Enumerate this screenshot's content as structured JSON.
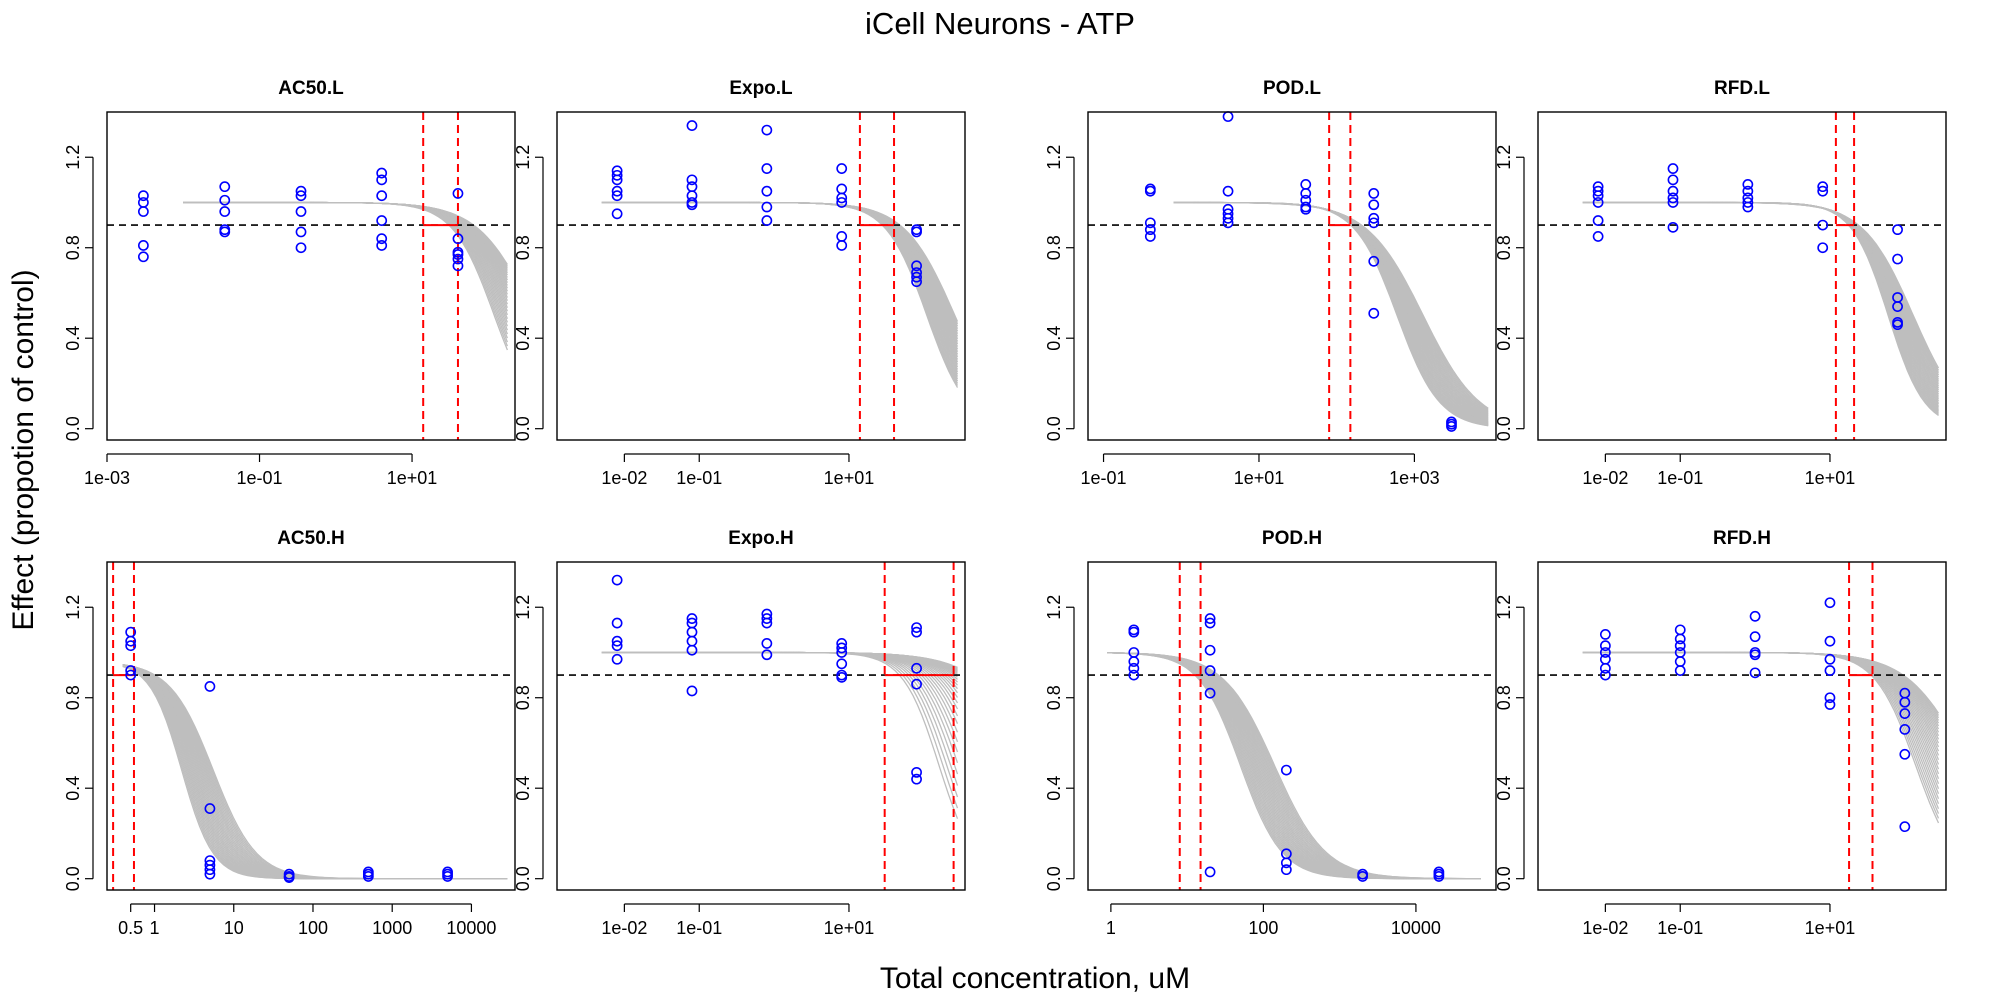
{
  "figure": {
    "title": "iCell Neurons -  ATP",
    "xlabel": "Total concentration, uM",
    "ylabel": "Effect (propotion of control)"
  },
  "colors": {
    "points": "#0000ff",
    "curves": "#bebebe",
    "interval": "#ff0000",
    "threshold": "#000000"
  },
  "chart_data": [
    {
      "type": "scatter",
      "title": "AC50.L",
      "x_scale": "log",
      "x_ticks": [
        0.001,
        0.1,
        10
      ],
      "x_tick_labels": [
        "1e-03",
        "1e-01",
        "1e+01"
      ],
      "xlim_log10": [
        -3,
        2.35
      ],
      "y_ticks": [
        0.0,
        0.4,
        0.8,
        1.2
      ],
      "y_tick_labels": [
        "0.0",
        "0.4",
        "0.8",
        "1.2"
      ],
      "ylim": [
        -0.05,
        1.4
      ],
      "threshold": 0.9,
      "interval": [
        14,
        40
      ],
      "curve_x_range_log10": [
        -2.0,
        2.25
      ],
      "curves": [
        {
          "top": 1.0,
          "ec50": 120,
          "hill": 1.6
        },
        {
          "top": 1.0,
          "ec50": 400,
          "hill": 1.2
        }
      ],
      "points": [
        {
          "x": 0.003,
          "y": [
            0.76,
            0.81,
            0.96,
            1.0,
            1.03
          ]
        },
        {
          "x": 0.035,
          "y": [
            0.87,
            0.88,
            0.96,
            1.01,
            1.07
          ]
        },
        {
          "x": 0.35,
          "y": [
            0.8,
            0.87,
            0.96,
            1.03,
            1.05
          ]
        },
        {
          "x": 4.0,
          "y": [
            0.81,
            0.84,
            0.92,
            1.03,
            1.1,
            1.13
          ]
        },
        {
          "x": 40,
          "y": [
            0.72,
            0.75,
            0.77,
            0.78,
            0.84,
            1.04
          ]
        }
      ]
    },
    {
      "type": "scatter",
      "title": "Expo.L",
      "x_scale": "log",
      "x_ticks": [
        0.01,
        0.1,
        10
      ],
      "x_tick_labels": [
        "1e-02",
        "1e-01",
        "1e+01"
      ],
      "xlim_log10": [
        -2.9,
        2.55
      ],
      "y_ticks": [
        0.0,
        0.4,
        0.8,
        1.2
      ],
      "y_tick_labels": [
        "0.0",
        "0.4",
        "0.8",
        "1.2"
      ],
      "ylim": [
        -0.05,
        1.4
      ],
      "threshold": 0.9,
      "interval": [
        14,
        40
      ],
      "curve_x_range_log10": [
        -2.3,
        2.45
      ],
      "curves": [
        {
          "top": 1.0,
          "ec50": 110,
          "hill": 1.6
        },
        {
          "top": 1.0,
          "ec50": 260,
          "hill": 1.3
        }
      ],
      "points": [
        {
          "x": 0.008,
          "y": [
            0.95,
            1.03,
            1.05,
            1.1,
            1.12,
            1.14
          ]
        },
        {
          "x": 0.08,
          "y": [
            0.99,
            1.0,
            1.03,
            1.07,
            1.1,
            1.34
          ]
        },
        {
          "x": 0.8,
          "y": [
            0.92,
            0.98,
            1.05,
            1.15,
            1.32
          ]
        },
        {
          "x": 8,
          "y": [
            0.81,
            0.85,
            1.0,
            1.02,
            1.06,
            1.15
          ]
        },
        {
          "x": 80,
          "y": [
            0.65,
            0.67,
            0.69,
            0.72,
            0.87,
            0.88
          ]
        }
      ]
    },
    {
      "type": "scatter",
      "title": "POD.L",
      "x_scale": "log",
      "x_ticks": [
        0.1,
        10,
        1000
      ],
      "x_tick_labels": [
        "1e-01",
        "1e+01",
        "1e+03"
      ],
      "xlim_log10": [
        -1.2,
        4.05
      ],
      "y_ticks": [
        0.0,
        0.4,
        0.8,
        1.2
      ],
      "y_tick_labels": [
        "0.0",
        "0.4",
        "0.8",
        "1.2"
      ],
      "ylim": [
        -0.05,
        1.4
      ],
      "threshold": 0.9,
      "interval": [
        80,
        150
      ],
      "curve_x_range_log10": [
        -0.1,
        3.95
      ],
      "curves": [
        {
          "top": 1.0,
          "ec50": 600,
          "hill": 1.6
        },
        {
          "top": 1.0,
          "ec50": 1300,
          "hill": 1.2
        }
      ],
      "points": [
        {
          "x": 0.4,
          "y": [
            0.85,
            0.88,
            0.91,
            1.05,
            1.06
          ]
        },
        {
          "x": 4,
          "y": [
            0.91,
            0.93,
            0.95,
            0.97,
            1.05,
            1.38
          ]
        },
        {
          "x": 40,
          "y": [
            0.97,
            0.98,
            1.01,
            1.04,
            1.08
          ]
        },
        {
          "x": 300,
          "y": [
            0.51,
            0.74,
            0.91,
            0.93,
            0.99,
            1.04
          ]
        },
        {
          "x": 3000,
          "y": [
            0.01,
            0.02,
            0.03
          ]
        }
      ]
    },
    {
      "type": "scatter",
      "title": "RFD.L",
      "x_scale": "log",
      "x_ticks": [
        0.01,
        0.1,
        10
      ],
      "x_tick_labels": [
        "1e-02",
        "1e-01",
        "1e+01"
      ],
      "xlim_log10": [
        -2.9,
        2.55
      ],
      "y_ticks": [
        0.0,
        0.4,
        0.8,
        1.2
      ],
      "y_tick_labels": [
        "0.0",
        "0.4",
        "0.8",
        "1.2"
      ],
      "ylim": [
        -0.05,
        1.4
      ],
      "threshold": 0.9,
      "interval": [
        12,
        21
      ],
      "curve_x_range_log10": [
        -2.3,
        2.45
      ],
      "curves": [
        {
          "top": 1.0,
          "ec50": 60,
          "hill": 1.8
        },
        {
          "top": 1.0,
          "ec50": 130,
          "hill": 1.3
        }
      ],
      "points": [
        {
          "x": 0.008,
          "y": [
            0.85,
            0.92,
            1.0,
            1.03,
            1.05,
            1.07
          ]
        },
        {
          "x": 0.08,
          "y": [
            0.89,
            1.0,
            1.02,
            1.05,
            1.1,
            1.15
          ]
        },
        {
          "x": 0.8,
          "y": [
            0.98,
            1.0,
            1.02,
            1.05,
            1.08
          ]
        },
        {
          "x": 8,
          "y": [
            0.8,
            0.9,
            1.05,
            1.07
          ]
        },
        {
          "x": 80,
          "y": [
            0.46,
            0.47,
            0.54,
            0.58,
            0.75,
            0.88
          ]
        }
      ]
    },
    {
      "type": "scatter",
      "title": "AC50.H",
      "x_scale": "log",
      "x_ticks": [
        0.5,
        1,
        10,
        100,
        1000,
        10000
      ],
      "x_tick_labels": [
        "0.5",
        "1",
        "10",
        "100",
        "1000",
        "10000"
      ],
      "xlim_log10": [
        -0.6,
        4.55
      ],
      "y_ticks": [
        0.0,
        0.4,
        0.8,
        1.2
      ],
      "y_tick_labels": [
        "0.0",
        "0.4",
        "0.8",
        "1.2"
      ],
      "ylim": [
        -0.05,
        1.4
      ],
      "threshold": 0.9,
      "interval": [
        0.3,
        0.55
      ],
      "curve_x_range_log10": [
        -0.4,
        4.45
      ],
      "curves": [
        {
          "top": 0.96,
          "ec50": 2.2,
          "hill": 2.2
        },
        {
          "top": 0.96,
          "ec50": 5.5,
          "hill": 1.6
        }
      ],
      "points": [
        {
          "x": 0.5,
          "y": [
            0.9,
            0.92,
            1.03,
            1.05,
            1.09
          ]
        },
        {
          "x": 5,
          "y": [
            0.02,
            0.04,
            0.06,
            0.08,
            0.31,
            0.85
          ]
        },
        {
          "x": 50,
          "y": [
            0.005,
            0.01,
            0.02
          ]
        },
        {
          "x": 500,
          "y": [
            0.01,
            0.02,
            0.03
          ]
        },
        {
          "x": 5000,
          "y": [
            0.01,
            0.02,
            0.03
          ]
        }
      ]
    },
    {
      "type": "scatter",
      "title": "Expo.H",
      "x_scale": "log",
      "x_ticks": [
        0.01,
        0.1,
        10
      ],
      "x_tick_labels": [
        "1e-02",
        "1e-01",
        "1e+01"
      ],
      "xlim_log10": [
        -2.9,
        2.55
      ],
      "y_ticks": [
        0.0,
        0.4,
        0.8,
        1.2
      ],
      "y_tick_labels": [
        "0.0",
        "0.4",
        "0.8",
        "1.2"
      ],
      "ylim": [
        -0.05,
        1.4
      ],
      "threshold": 0.9,
      "interval": [
        30,
        250
      ],
      "curve_x_range_log10": [
        -2.3,
        2.45
      ],
      "curves": [
        {
          "top": 1.0,
          "ec50": 160,
          "hill": 1.8
        },
        {
          "top": 1.0,
          "ec50": 4000,
          "hill": 1.0
        }
      ],
      "points": [
        {
          "x": 0.008,
          "y": [
            0.97,
            1.03,
            1.05,
            1.13,
            1.32
          ]
        },
        {
          "x": 0.08,
          "y": [
            0.83,
            1.01,
            1.05,
            1.09,
            1.13,
            1.15
          ]
        },
        {
          "x": 0.8,
          "y": [
            0.99,
            1.04,
            1.13,
            1.15,
            1.17
          ]
        },
        {
          "x": 8,
          "y": [
            0.89,
            0.9,
            0.95,
            1.0,
            1.02,
            1.04
          ]
        },
        {
          "x": 80,
          "y": [
            0.44,
            0.47,
            0.86,
            0.93,
            1.09,
            1.11
          ]
        }
      ]
    },
    {
      "type": "scatter",
      "title": "POD.H",
      "x_scale": "log",
      "x_ticks": [
        1,
        100,
        10000
      ],
      "x_tick_labels": [
        "1",
        "100",
        "10000"
      ],
      "xlim_log10": [
        -0.3,
        5.05
      ],
      "y_ticks": [
        0.0,
        0.4,
        0.8,
        1.2
      ],
      "y_tick_labels": [
        "0.0",
        "0.4",
        "0.8",
        "1.2"
      ],
      "ylim": [
        -0.05,
        1.4
      ],
      "threshold": 0.9,
      "interval": [
        8,
        15
      ],
      "curve_x_range_log10": [
        -0.05,
        4.85
      ],
      "curves": [
        {
          "top": 1.0,
          "ec50": 50,
          "hill": 1.6
        },
        {
          "top": 1.0,
          "ec50": 140,
          "hill": 1.3
        }
      ],
      "points": [
        {
          "x": 2,
          "y": [
            0.9,
            0.93,
            0.96,
            1.0,
            1.09,
            1.1
          ]
        },
        {
          "x": 20,
          "y": [
            0.03,
            0.82,
            0.92,
            1.01,
            1.13,
            1.15
          ]
        },
        {
          "x": 200,
          "y": [
            0.04,
            0.07,
            0.11,
            0.48
          ]
        },
        {
          "x": 2000,
          "y": [
            0.01,
            0.02
          ]
        },
        {
          "x": 20000,
          "y": [
            0.01,
            0.02,
            0.03
          ]
        }
      ]
    },
    {
      "type": "scatter",
      "title": "RFD.H",
      "x_scale": "log",
      "x_ticks": [
        0.01,
        0.1,
        10
      ],
      "x_tick_labels": [
        "1e-02",
        "1e-01",
        "1e+01"
      ],
      "xlim_log10": [
        -2.9,
        2.55
      ],
      "y_ticks": [
        0.0,
        0.4,
        0.8,
        1.2
      ],
      "y_tick_labels": [
        "0.0",
        "0.4",
        "0.8",
        "1.2"
      ],
      "ylim": [
        -0.05,
        1.4
      ],
      "threshold": 0.9,
      "interval": [
        18,
        37
      ],
      "curve_x_range_log10": [
        -2.3,
        2.45
      ],
      "curves": [
        {
          "top": 1.0,
          "ec50": 140,
          "hill": 1.6
        },
        {
          "top": 1.0,
          "ec50": 700,
          "hill": 1.1
        }
      ],
      "points": [
        {
          "x": 0.01,
          "y": [
            0.9,
            0.93,
            0.97,
            1.0,
            1.03,
            1.08
          ]
        },
        {
          "x": 0.1,
          "y": [
            0.92,
            0.96,
            1.0,
            1.03,
            1.06,
            1.1
          ]
        },
        {
          "x": 1,
          "y": [
            0.91,
            0.99,
            1.0,
            1.07,
            1.16
          ]
        },
        {
          "x": 10,
          "y": [
            0.77,
            0.8,
            0.92,
            0.97,
            1.05,
            1.22
          ]
        },
        {
          "x": 100,
          "y": [
            0.23,
            0.55,
            0.66,
            0.73,
            0.78,
            0.82
          ]
        }
      ]
    }
  ]
}
